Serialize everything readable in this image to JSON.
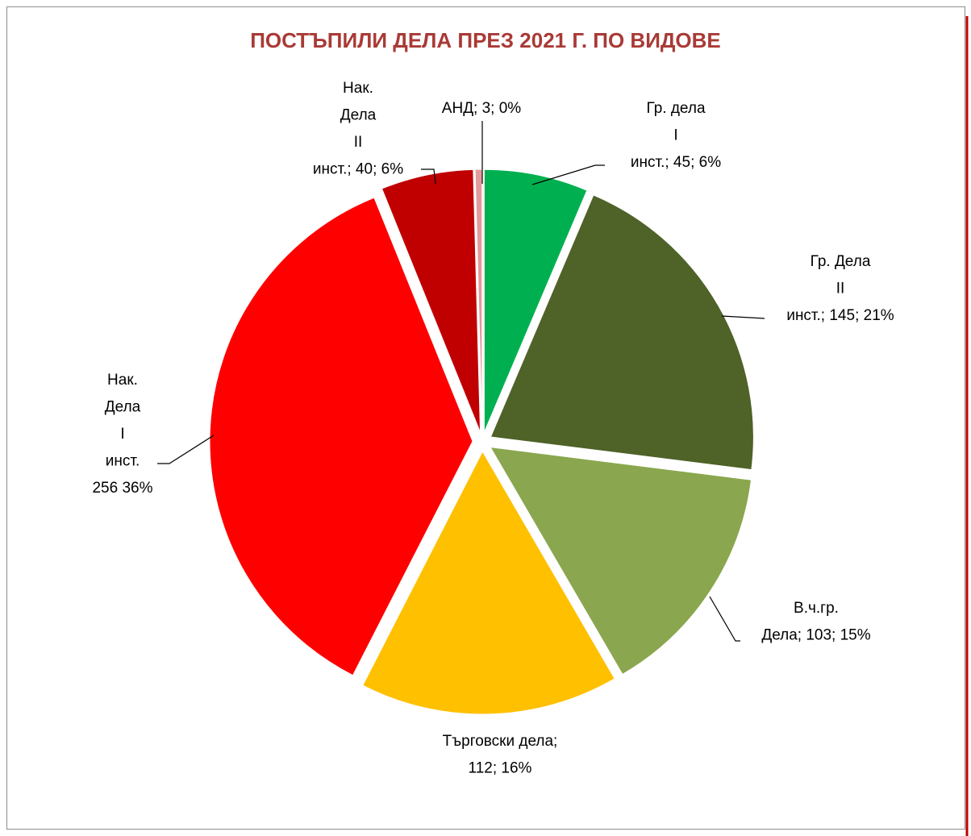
{
  "chart_data": {
    "type": "pie",
    "title": "ПОСТЪПИЛИ ДЕЛА ПРЕЗ 2021 Г. ПО ВИДОВЕ",
    "values": [
      45,
      145,
      103,
      112,
      256,
      40,
      3
    ],
    "value_labels": [
      [
        "Гр. дела",
        "I",
        "инст.; 45; 6%"
      ],
      [
        "Гр. Дела",
        "II",
        "инст.; 145; 21%"
      ],
      [
        "В.ч.гр.",
        "Дела; 103; 15%"
      ],
      [
        "Търговски дела;",
        "112; 16%"
      ],
      [
        "Нак.",
        "Дела",
        "I",
        "инст.",
        "256 36%"
      ],
      [
        "Нак.",
        "Дела",
        "II",
        "инст.; 40; 6%"
      ],
      [
        "АНД; 3; 0%"
      ]
    ],
    "colors": [
      "#00b050",
      "#4f6228",
      "#8aa64f",
      "#ffc000",
      "#ff0000",
      "#c00000",
      "#e39a9a"
    ]
  }
}
